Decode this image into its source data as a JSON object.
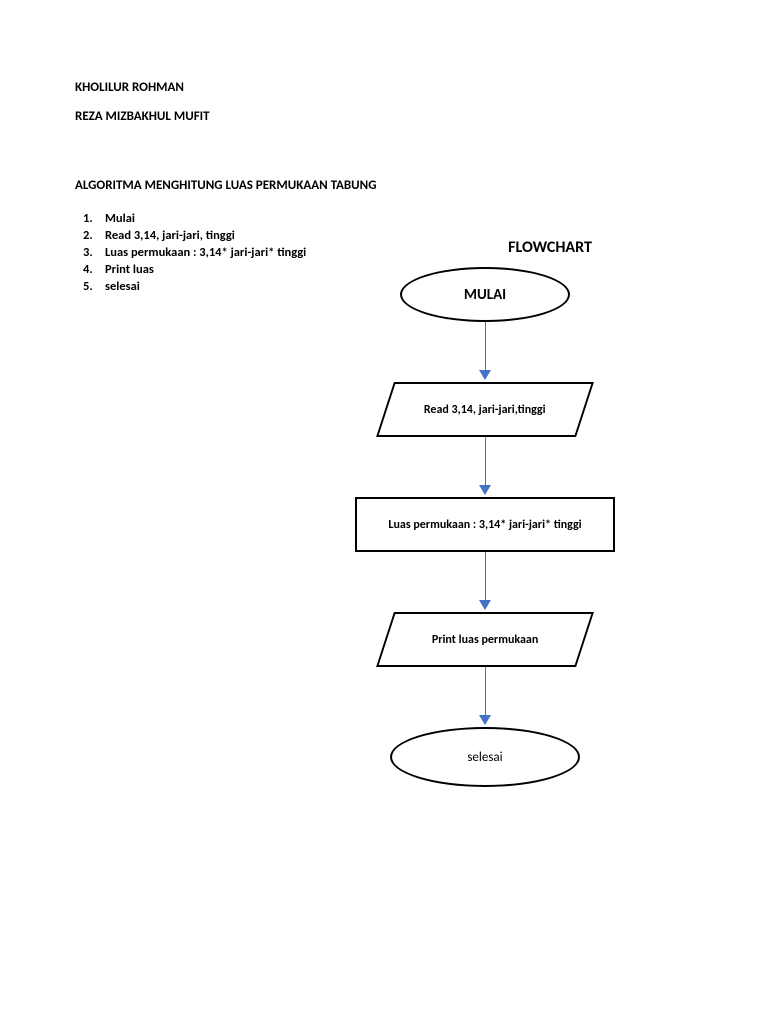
{
  "authors": {
    "line1": "KHOLILUR ROHMAN",
    "line2": "REZA MIZBAKHUL MUFIT"
  },
  "title": "ALGORITMA MENGHITUNG LUAS PERMUKAAN TABUNG",
  "steps": [
    "Mulai",
    "Read 3,14, jari-jari, tinggi",
    "Luas permukaan : 3,14* jari-jari* tinggi",
    "Print luas",
    "selesai"
  ],
  "flowchart": {
    "title": "FLOWCHART",
    "nodes": [
      {
        "type": "terminator",
        "label": "MULAI"
      },
      {
        "type": "io",
        "label": "Read 3,14, jari-jari,tinggi"
      },
      {
        "type": "process",
        "label": "Luas permukaan : 3,14* jari-jari* tinggi"
      },
      {
        "type": "io",
        "label": "Print luas permukaan"
      },
      {
        "type": "terminator",
        "label": "selesai"
      }
    ],
    "colors": {
      "background": "#ffffff",
      "border": "#000000",
      "arrow": "#4472c4",
      "text": "#000000"
    },
    "border_width": 2,
    "arrow_width": 1.5,
    "font_family": "Calibri"
  }
}
